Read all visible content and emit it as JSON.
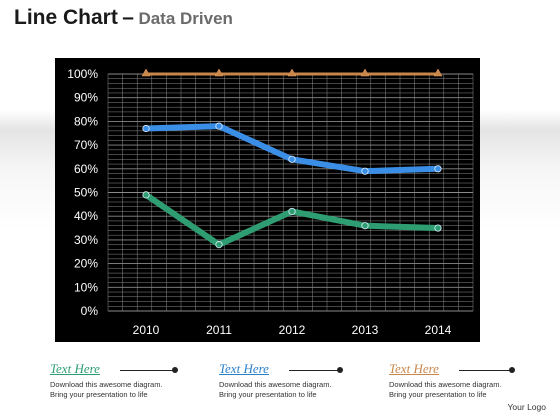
{
  "title": {
    "main": "Line Chart",
    "dash": "–",
    "sub": "Data Driven"
  },
  "chart_data": {
    "type": "line",
    "categories": [
      "2010",
      "2011",
      "2012",
      "2013",
      "2014"
    ],
    "series": [
      {
        "values": [
          100,
          100,
          100,
          100,
          100
        ],
        "color": "#c8864a",
        "marker": "triangle"
      },
      {
        "values": [
          77,
          78,
          64,
          59,
          60
        ],
        "color": "#3a8ee6",
        "marker": "circle"
      },
      {
        "values": [
          49,
          28,
          42,
          36,
          35
        ],
        "color": "#2e9e72",
        "marker": "circle"
      }
    ],
    "ylim": [
      0,
      100
    ],
    "yticks": [
      "0%",
      "10%",
      "20%",
      "30%",
      "40%",
      "50%",
      "60%",
      "70%",
      "80%",
      "90%",
      "100%"
    ],
    "grid": true,
    "background": "#000000"
  },
  "callouts": [
    {
      "label": "Text Here",
      "color": "#2e9e72",
      "line1": "Download this awesome  diagram.",
      "line2": "Bring your presentation to life"
    },
    {
      "label": "Text Here",
      "color": "#2a7fc8",
      "line1": "Download this awesome  diagram.",
      "line2": "Bring your presentation to life"
    },
    {
      "label": "Text Here",
      "color": "#c8864a",
      "line1": "Download this awesome  diagram.",
      "line2": "Bring your presentation to life"
    }
  ],
  "logo": "Your Logo"
}
